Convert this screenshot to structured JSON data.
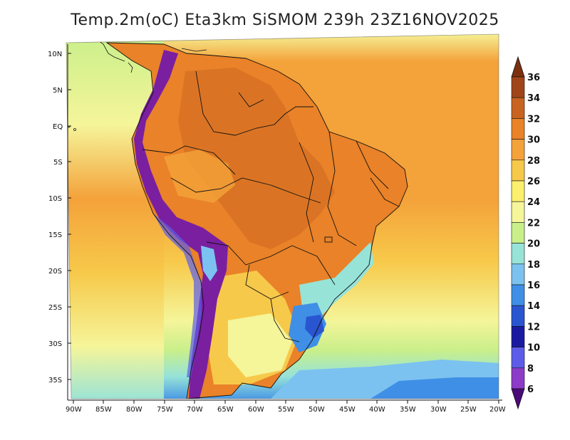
{
  "title": "Temp.2m(oC) Eta3km SiSMOM 239h 23Z16NOV2025",
  "lat_labels": [
    "10N",
    "5N",
    "EQ",
    "5S",
    "10S",
    "15S",
    "20S",
    "25S",
    "30S",
    "35S"
  ],
  "lon_labels": [
    "90W",
    "85W",
    "80W",
    "75W",
    "70W",
    "65W",
    "60W",
    "55W",
    "50W",
    "45W",
    "40W",
    "35W",
    "30W",
    "25W",
    "20W"
  ],
  "colorbar": {
    "labels": [
      "36",
      "34",
      "32",
      "30",
      "28",
      "26",
      "24",
      "22",
      "20",
      "18",
      "16",
      "14",
      "12",
      "10",
      "8",
      "6"
    ],
    "colors": [
      "#7b3010",
      "#a0451a",
      "#c8641f",
      "#e98228",
      "#f4a23a",
      "#f7c94a",
      "#fbef6e",
      "#f5f59a",
      "#c9ef8a",
      "#97e3d8",
      "#7cc2f0",
      "#3f8fe6",
      "#2a55d0",
      "#1a1aa0",
      "#5c5ce8",
      "#8c3cc8",
      "#7a1fa0",
      "#4a0a7a"
    ]
  },
  "colors": {
    "ocean_equatorial": "#f4a23a",
    "ocean_mid": "#f5f59a",
    "ocean_south": "#c9ef8a",
    "ocean_cold": "#7cc2f0",
    "land_hot": "#e98228",
    "andes": "#4a0a7a",
    "border": "#111111"
  }
}
